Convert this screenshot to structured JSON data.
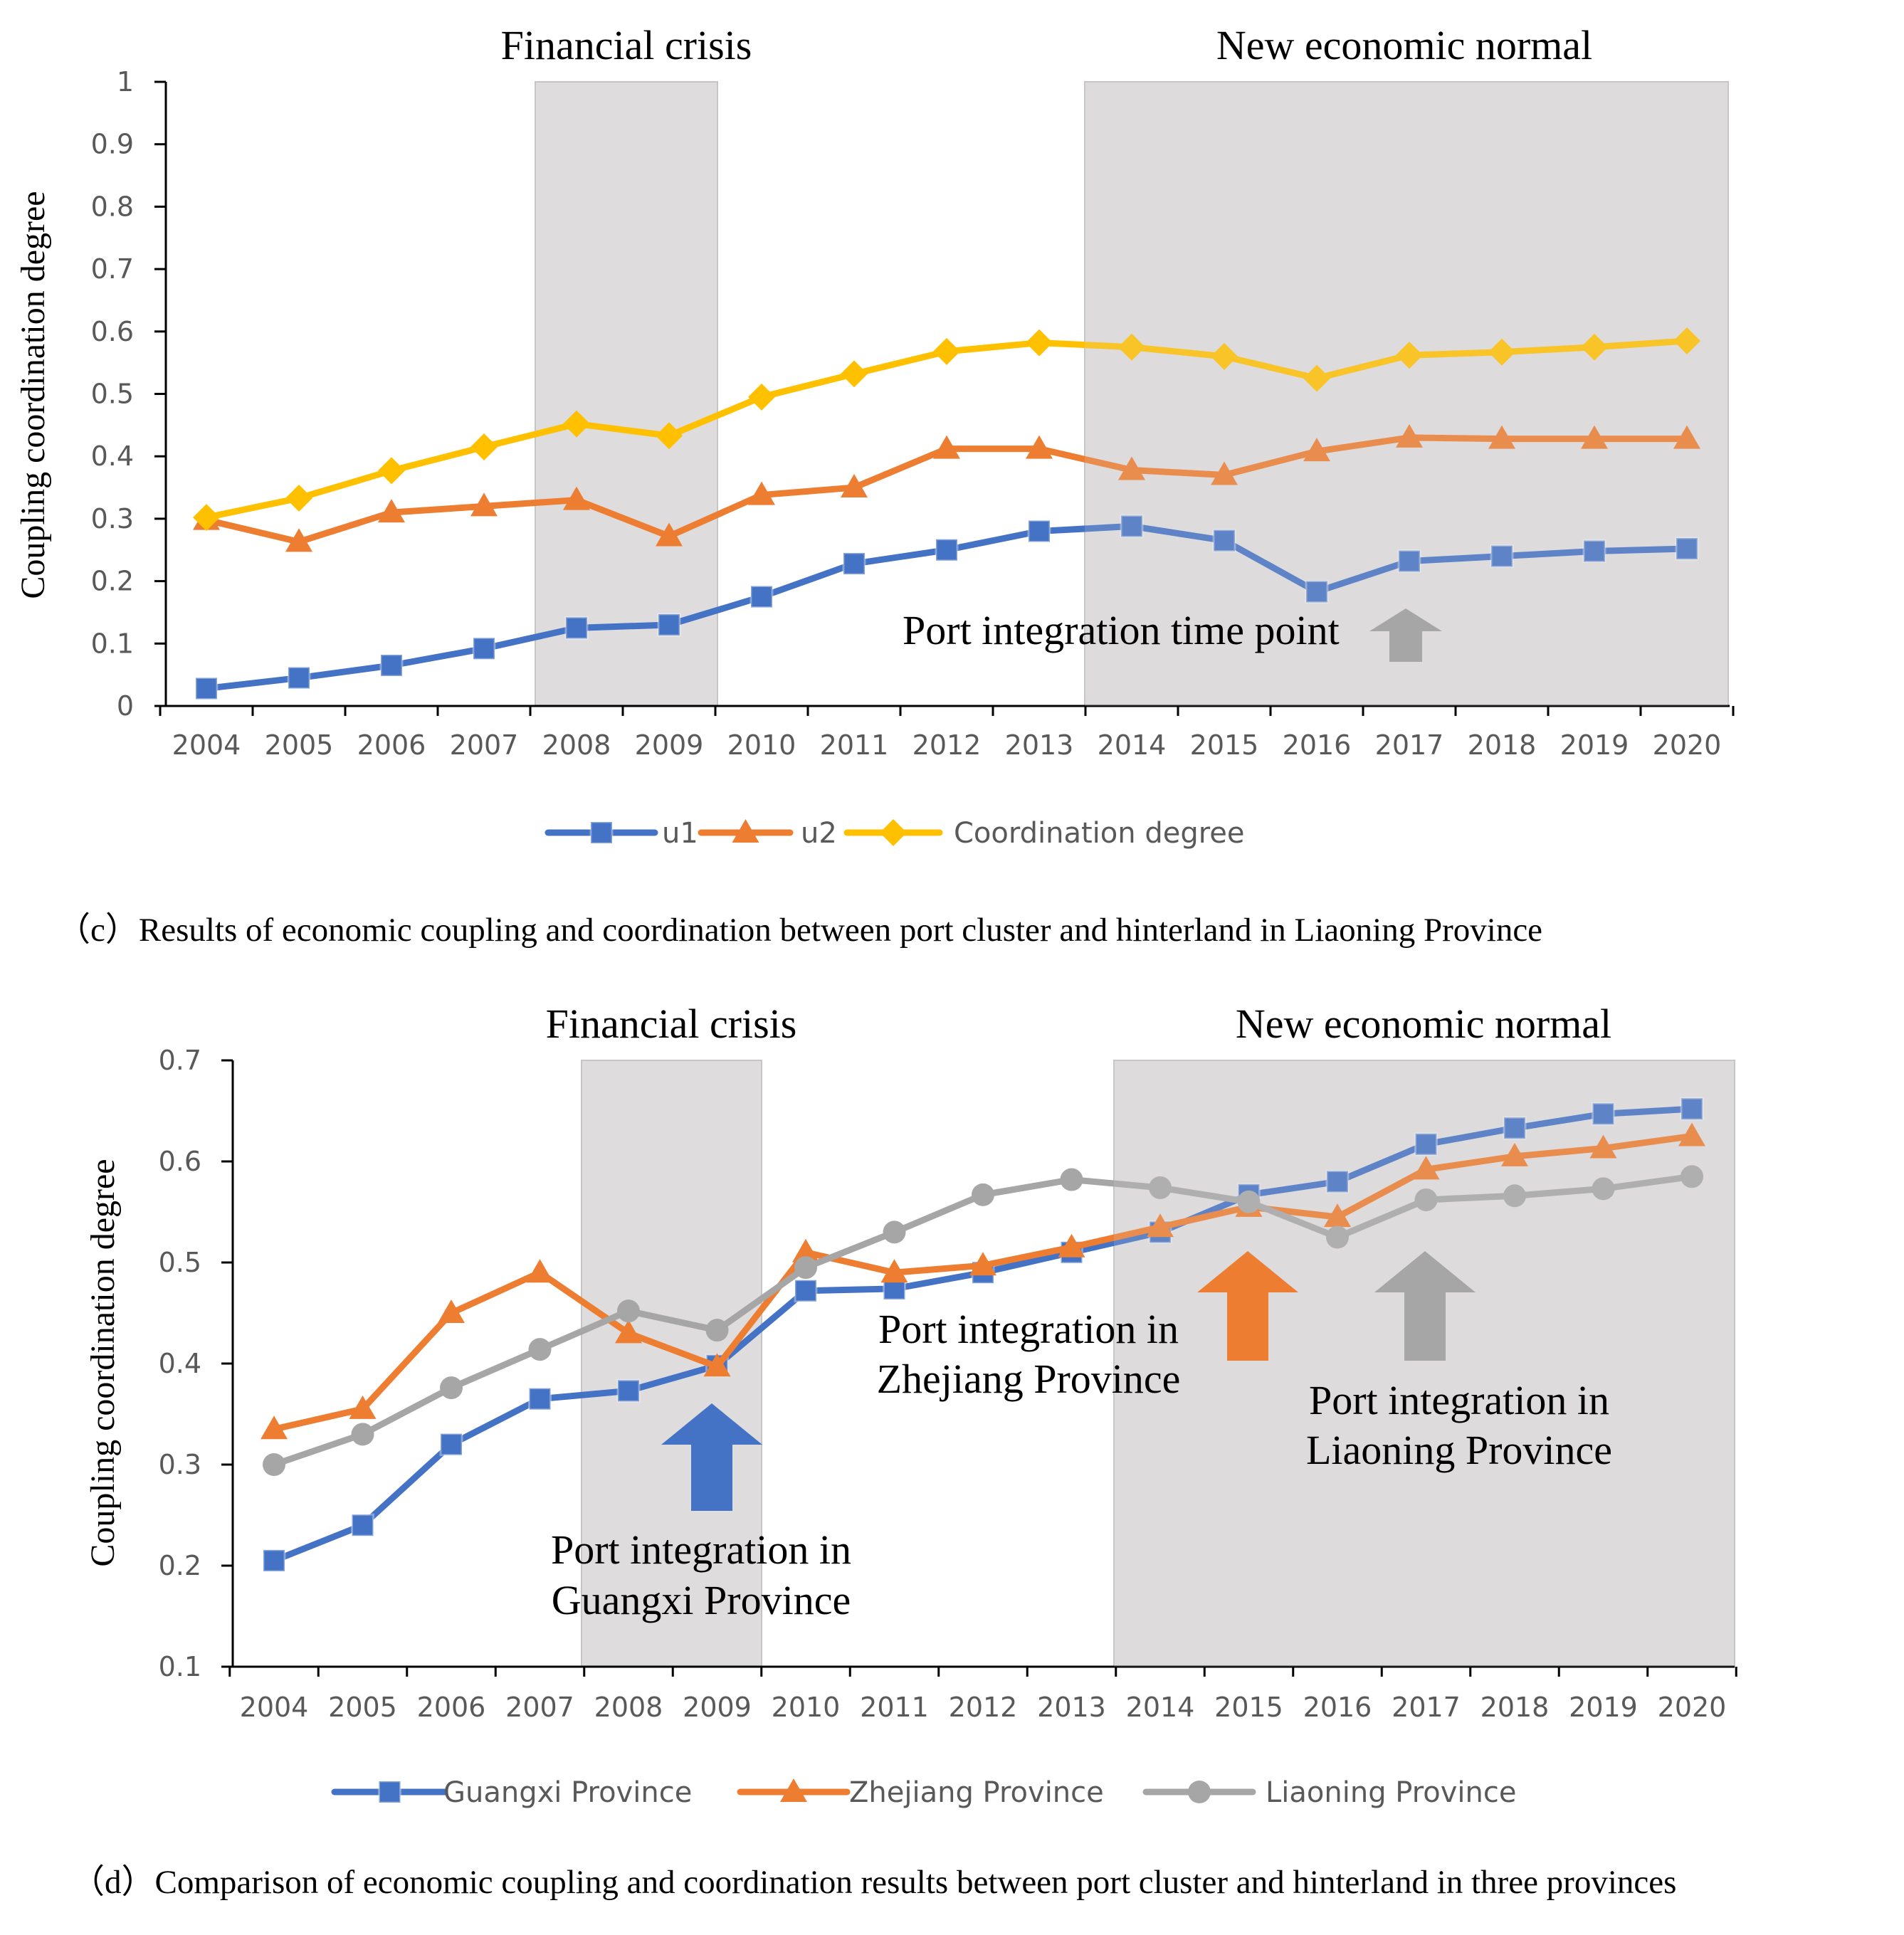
{
  "chart_data": [
    {
      "type": "line",
      "title": "",
      "caption": "（c）Results of economic coupling and coordination between port cluster and hinterland in Liaoning Province",
      "xlabel": "",
      "ylabel": "Coupling coordination degree",
      "ylim": [
        0,
        1
      ],
      "yticks": [
        "0",
        "0.1",
        "0.2",
        "0.3",
        "0.4",
        "0.5",
        "0.6",
        "0.7",
        "0.8",
        "0.9",
        "1"
      ],
      "categories": [
        "2004",
        "2005",
        "2006",
        "2007",
        "2008",
        "2009",
        "2010",
        "2011",
        "2012",
        "2013",
        "2014",
        "2015",
        "2016",
        "2017",
        "2018",
        "2019",
        "2020"
      ],
      "series": [
        {
          "name": "u1",
          "color": "#4472c4",
          "marker": "square",
          "values": [
            0.028,
            0.045,
            0.065,
            0.092,
            0.125,
            0.13,
            0.175,
            0.228,
            0.25,
            0.28,
            0.288,
            0.265,
            0.183,
            0.232,
            0.24,
            0.248,
            0.252
          ]
        },
        {
          "name": "u2",
          "color": "#ed7d31",
          "marker": "triangle",
          "values": [
            0.298,
            0.263,
            0.31,
            0.32,
            0.33,
            0.272,
            0.338,
            0.35,
            0.412,
            0.412,
            0.378,
            0.37,
            0.408,
            0.43,
            0.428,
            0.428,
            0.428
          ]
        },
        {
          "name": "Coordination degree",
          "color": "#ffc000",
          "marker": "diamond",
          "values": [
            0.302,
            0.333,
            0.377,
            0.415,
            0.452,
            0.433,
            0.495,
            0.532,
            0.568,
            0.582,
            0.575,
            0.56,
            0.525,
            0.562,
            0.567,
            0.575,
            0.585
          ]
        }
      ],
      "annotations": [
        {
          "text": "Financial crisis",
          "range": [
            "2008",
            "2009"
          ]
        },
        {
          "text": "New economic normal",
          "range": [
            "2014",
            "2020"
          ]
        },
        {
          "text": "Port integration time point",
          "at": "2017",
          "arrow_color": "#a6a6a6"
        }
      ],
      "legend": "bottom",
      "grid": false
    },
    {
      "type": "line",
      "title": "",
      "caption": "（d）Comparison of economic coupling and coordination results between port cluster and hinterland in three provinces",
      "xlabel": "",
      "ylabel": "Coupling coordination degree",
      "ylim": [
        0.1,
        0.7
      ],
      "yticks": [
        "0.1",
        "0.2",
        "0.3",
        "0.4",
        "0.5",
        "0.6",
        "0.7"
      ],
      "categories": [
        "2004",
        "2005",
        "2006",
        "2007",
        "2008",
        "2009",
        "2010",
        "2011",
        "2012",
        "2013",
        "2014",
        "2015",
        "2016",
        "2017",
        "2018",
        "2019",
        "2020"
      ],
      "series": [
        {
          "name": "Guangxi Province",
          "color": "#4472c4",
          "marker": "square",
          "values": [
            0.205,
            0.24,
            0.32,
            0.365,
            0.373,
            0.398,
            0.472,
            0.474,
            0.49,
            0.51,
            0.53,
            0.567,
            0.58,
            0.617,
            0.633,
            0.647,
            0.652
          ]
        },
        {
          "name": "Zhejiang Province",
          "color": "#ed7d31",
          "marker": "triangle",
          "values": [
            0.335,
            0.355,
            0.45,
            0.49,
            0.43,
            0.397,
            0.51,
            0.49,
            0.497,
            0.515,
            0.535,
            0.555,
            0.545,
            0.592,
            0.605,
            0.613,
            0.625
          ]
        },
        {
          "name": "Liaoning Province",
          "color": "#a6a6a6",
          "marker": "circle",
          "values": [
            0.3,
            0.33,
            0.376,
            0.414,
            0.452,
            0.433,
            0.495,
            0.53,
            0.567,
            0.582,
            0.574,
            0.56,
            0.525,
            0.562,
            0.566,
            0.573,
            0.585
          ]
        }
      ],
      "annotations": [
        {
          "text": "Financial crisis",
          "range": [
            "2008",
            "2009"
          ]
        },
        {
          "text": "New economic normal",
          "range": [
            "2014",
            "2020"
          ]
        },
        {
          "text_lines": [
            "Port integration in",
            "Guangxi Province"
          ],
          "at": "2009",
          "arrow_color": "#4472c4"
        },
        {
          "text_lines": [
            "Port integration in",
            "Zhejiang Province"
          ],
          "at": "2015",
          "arrow_color": "#ed7d31"
        },
        {
          "text_lines": [
            "Port integration in",
            "Liaoning Province"
          ],
          "at": "2017",
          "arrow_color": "#a6a6a6"
        }
      ],
      "legend": "bottom",
      "grid": false
    }
  ]
}
